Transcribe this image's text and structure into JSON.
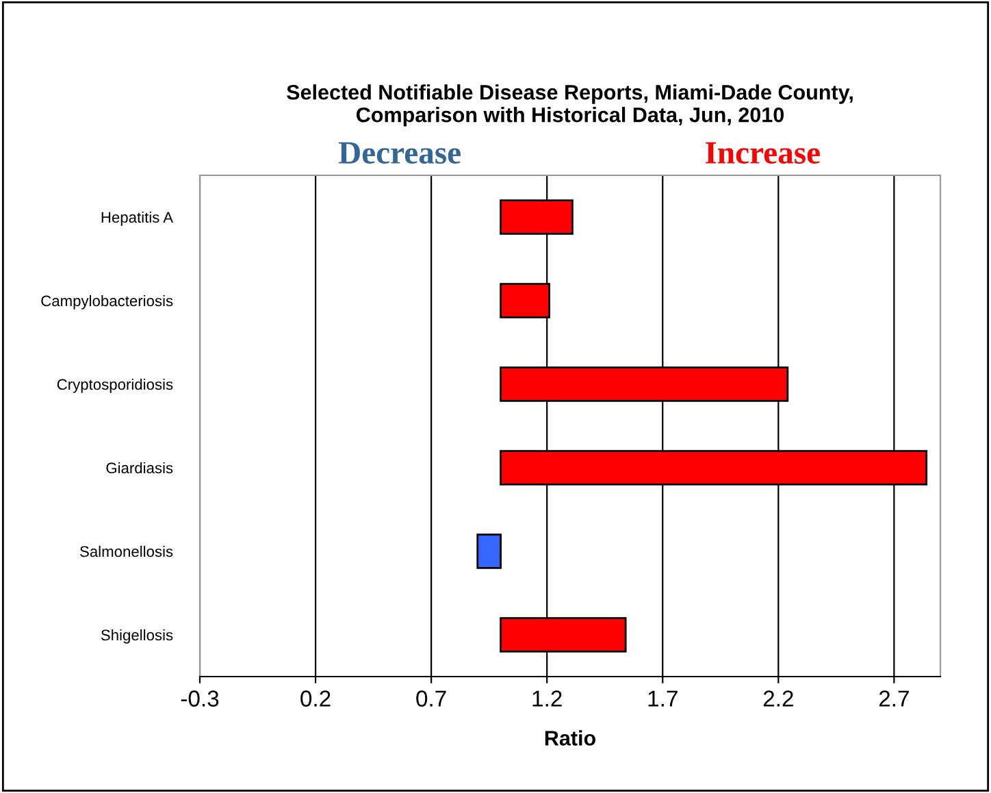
{
  "chart_data": {
    "type": "bar",
    "orientation": "horizontal",
    "title": "Selected Notifiable Disease Reports, Miami-Dade County,\nComparison with Historical Data, Jun, 2010",
    "xlabel": "Ratio",
    "categories": [
      "Hepatitis A",
      "Campylobacteriosis",
      "Cryptosporidiosis",
      "Giardiasis",
      "Salmonellosis",
      "Shigellosis"
    ],
    "base": [
      1,
      1,
      1,
      1,
      1,
      1
    ],
    "values": [
      0.31,
      0.21,
      1.24,
      1.84,
      -0.1,
      0.54
    ],
    "colors": [
      "#ff0000",
      "#ff0000",
      "#ff0000",
      "#ff0000",
      "#3366ff",
      "#ff0000"
    ],
    "xlim": [
      -0.3,
      2.9
    ],
    "xticks": [
      -0.3,
      0.2,
      0.7,
      1.2,
      1.7,
      2.2,
      2.7
    ],
    "grid": "x",
    "annotations": [
      "Decrease",
      "Increase"
    ]
  }
}
